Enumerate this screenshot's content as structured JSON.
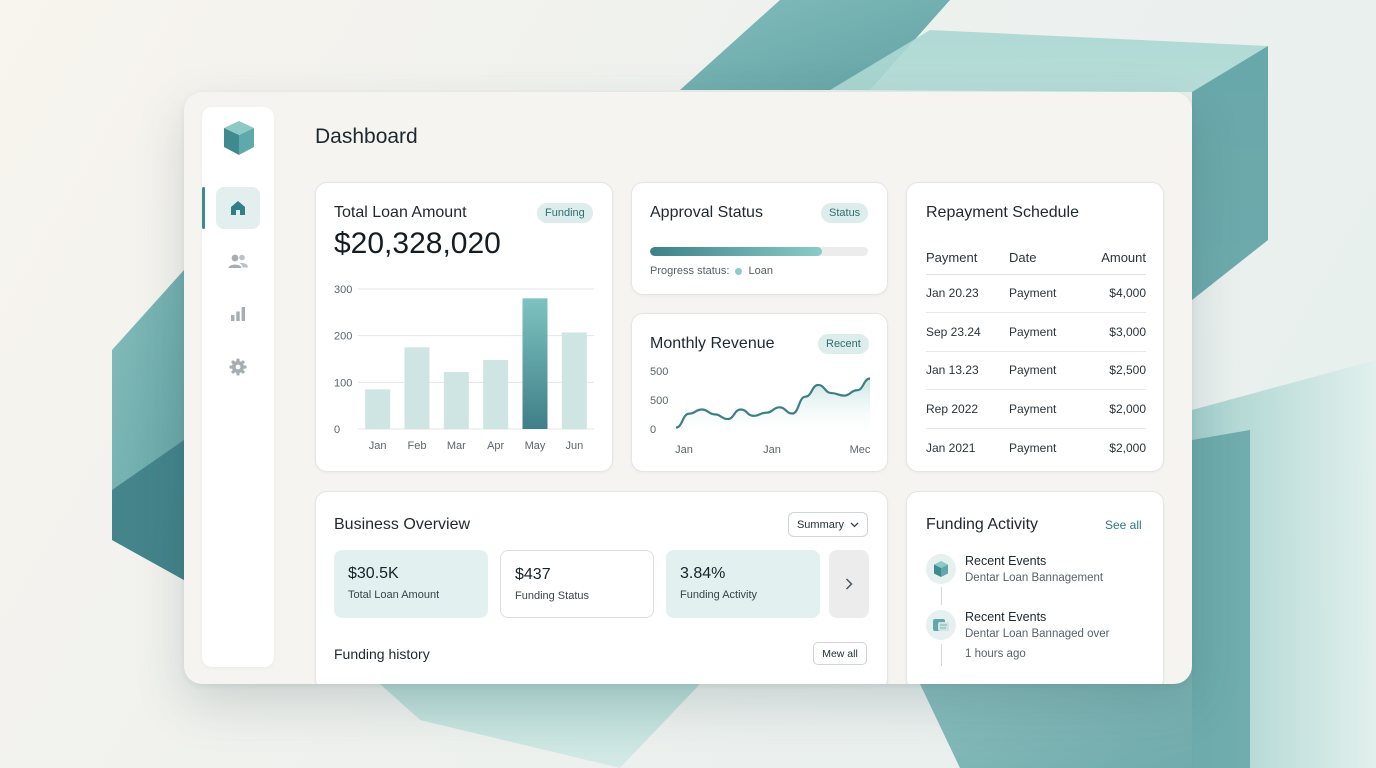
{
  "page": {
    "title": "Dashboard"
  },
  "sidebar": {
    "items": [
      {
        "icon": "home-icon",
        "active": true
      },
      {
        "icon": "users-icon",
        "active": false
      },
      {
        "icon": "bar-chart-icon",
        "active": false
      },
      {
        "icon": "gear-icon",
        "active": false
      }
    ]
  },
  "colors": {
    "accent": "#3a8a90",
    "accent_light": "#cfe5e3",
    "bar_highlight": "#4f9399"
  },
  "total_loan": {
    "title": "Total Loan Amount",
    "badge": "Funding",
    "amount": "$20,328,020"
  },
  "approval": {
    "title": "Approval Status",
    "badge": "Status",
    "progress": 0.79,
    "progress_label": "Progress status:",
    "progress_value_label": "Loan"
  },
  "revenue": {
    "title": "Monthly Revenue",
    "badge": "Recent"
  },
  "repayment": {
    "title": "Repayment Schedule",
    "headers": [
      "Payment",
      "Date",
      "Amount"
    ],
    "rows": [
      [
        "Jan 20.23",
        "Payment",
        "$4,000"
      ],
      [
        "Sep 23.24",
        "Payment",
        "$3,000"
      ],
      [
        "Jan 13.23",
        "Payment",
        "$2,500"
      ],
      [
        "Rep 2022",
        "Payment",
        "$2,000"
      ],
      [
        "Jan 2021",
        "Payment",
        "$2,000"
      ]
    ]
  },
  "business": {
    "title": "Business Overview",
    "dropdown": "Summary",
    "stats": [
      {
        "value": "$30.5K",
        "label": "Total Loan Amount"
      },
      {
        "value": "$437",
        "label": "Funding Status"
      },
      {
        "value": "3.84%",
        "label": "Funding Activity"
      }
    ],
    "history_title": "Funding history",
    "history_button": "Mew all"
  },
  "funding_activity": {
    "title": "Funding Activity",
    "see_all": "See all",
    "events": [
      {
        "title": "Recent Events",
        "subtitle": "Dentar Loan Bannagement",
        "extra": ""
      },
      {
        "title": "Recent Events",
        "subtitle": "Dentar Loan Bannaged over",
        "extra": "1 hours ago"
      }
    ]
  },
  "chart_data": [
    {
      "type": "bar",
      "categories": [
        "Jan",
        "Feb",
        "Mar",
        "Apr",
        "May",
        "Jun"
      ],
      "values": [
        85,
        175,
        122,
        148,
        280,
        207
      ],
      "highlight_index": 4,
      "yticks": [
        0,
        100,
        200,
        300
      ],
      "ylim": [
        0,
        300
      ],
      "grid": true
    },
    {
      "type": "area",
      "x_tick_labels": [
        "Jan",
        "Jan",
        "Mec"
      ],
      "y_tick_labels": [
        "0",
        "500",
        "500"
      ],
      "values": [
        30,
        95,
        115,
        92,
        70,
        115,
        85,
        100,
        125,
        96,
        175,
        230,
        192,
        180,
        205,
        260
      ],
      "ylim": [
        0,
        300
      ]
    }
  ]
}
